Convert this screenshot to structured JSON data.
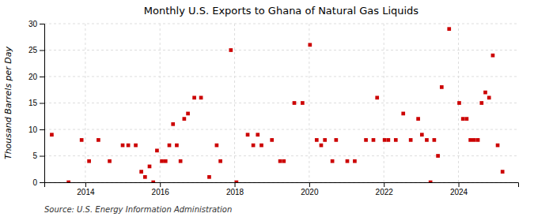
{
  "chart_data": {
    "type": "scatter",
    "title": "Monthly U.S. Exports to Ghana of Natural Gas Liquids",
    "ylabel": "Thousand Barrels per Day",
    "annotations": [
      "Source: U.S. Energy Information Administration"
    ],
    "color": "#cc0000",
    "marker": "square",
    "grid": true,
    "xlim": [
      2012.9,
      2025.6
    ],
    "xticks": [
      2014,
      2016,
      2018,
      2020,
      2022,
      2024
    ],
    "ylim": [
      0,
      30
    ],
    "yticks": [
      0,
      5,
      10,
      15,
      20,
      25,
      30
    ],
    "x": [
      2013.1,
      2013.55,
      2013.9,
      2014.1,
      2014.35,
      2014.65,
      2015.0,
      2015.15,
      2015.35,
      2015.5,
      2015.6,
      2015.72,
      2015.82,
      2015.92,
      2016.05,
      2016.15,
      2016.25,
      2016.35,
      2016.45,
      2016.55,
      2016.65,
      2016.75,
      2016.92,
      2017.1,
      2017.32,
      2017.52,
      2017.62,
      2017.9,
      2018.05,
      2018.35,
      2018.5,
      2018.62,
      2018.72,
      2019.0,
      2019.22,
      2019.32,
      2019.6,
      2019.82,
      2020.02,
      2020.2,
      2020.32,
      2020.42,
      2020.62,
      2020.72,
      2021.02,
      2021.22,
      2021.52,
      2021.72,
      2021.82,
      2022.02,
      2022.12,
      2022.32,
      2022.52,
      2022.72,
      2022.92,
      2023.02,
      2023.15,
      2023.25,
      2023.35,
      2023.45,
      2023.55,
      2023.75,
      2024.02,
      2024.12,
      2024.22,
      2024.32,
      2024.42,
      2024.52,
      2024.62,
      2024.72,
      2024.82,
      2024.92,
      2025.05,
      2025.18
    ],
    "values": [
      9,
      0,
      8,
      4,
      8,
      4,
      7,
      7,
      7,
      2,
      1,
      3,
      0,
      6,
      4,
      4,
      7,
      11,
      7,
      4,
      12,
      13,
      16,
      16,
      1,
      7,
      4,
      25,
      0,
      9,
      7,
      9,
      7,
      8,
      4,
      4,
      15,
      15,
      26,
      8,
      7,
      8,
      4,
      8,
      4,
      4,
      8,
      8,
      16,
      8,
      8,
      8,
      13,
      8,
      12,
      9,
      8,
      0,
      8,
      5,
      18,
      29,
      15,
      12,
      12,
      8,
      8,
      8,
      15,
      17,
      16,
      24,
      7,
      2
    ]
  }
}
